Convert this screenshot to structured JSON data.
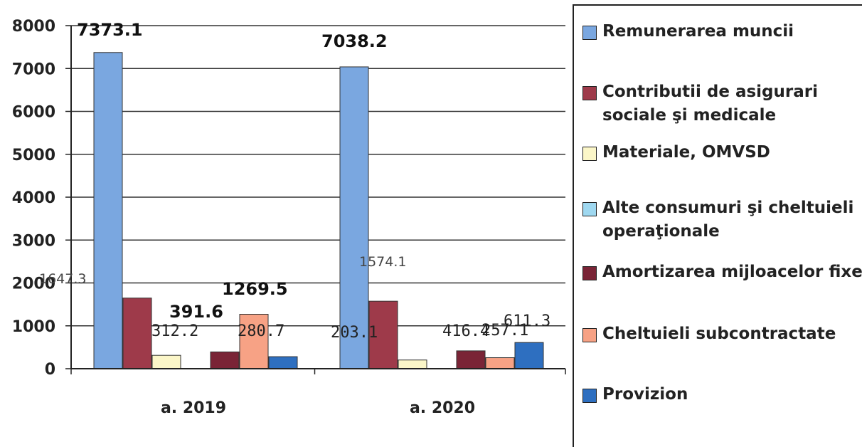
{
  "chart_data": {
    "type": "bar",
    "categories": [
      "a. 2019",
      "a. 2020"
    ],
    "ylim": [
      0,
      8000
    ],
    "yticks": [
      "0",
      "1000",
      "2000",
      "3000",
      "4000",
      "5000",
      "6000",
      "7000",
      "8000"
    ],
    "grid": true,
    "legend_position": "right",
    "series": [
      {
        "name": "Remunerarea muncii",
        "color": "#7aa7e0",
        "values": [
          7373.1,
          7038.2
        ],
        "labels": [
          "7373.1",
          "7038.2"
        ]
      },
      {
        "name": "Contributii de asigurari sociale şi medicale",
        "color": "#9e3a4a",
        "values": [
          1647.3,
          1574.1
        ],
        "labels": [
          "1647.3",
          "1574.1"
        ]
      },
      {
        "name": "Materiale, OMVSD",
        "color": "#fbf6c8",
        "values": [
          312.2,
          203.1
        ],
        "labels": [
          "312.2",
          "203.1"
        ]
      },
      {
        "name": "Alte consumuri şi cheltuieli operaţionale",
        "color": "#9fd8f0",
        "values": [
          0,
          0
        ],
        "labels": [
          "",
          ""
        ]
      },
      {
        "name": "Amortizarea mijloacelor fixe",
        "color": "#7a2436",
        "values": [
          391.6,
          416.4
        ],
        "labels": [
          "391.6",
          "416.4"
        ]
      },
      {
        "name": "Cheltuieli  subcontractate",
        "color": "#f7a285",
        "values": [
          1269.5,
          257.1
        ],
        "labels": [
          "1269.5",
          "257.1"
        ]
      },
      {
        "name": "Provizion",
        "color": "#2e6fc0",
        "values": [
          280.7,
          611.3
        ],
        "labels": [
          "280.7",
          "611.3"
        ]
      }
    ]
  }
}
